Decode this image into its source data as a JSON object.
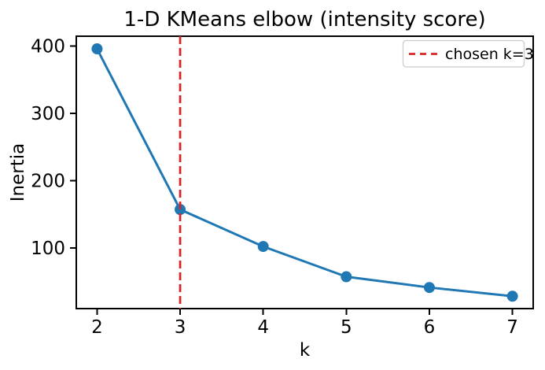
{
  "chart_data": {
    "type": "line",
    "title": "1-D KMeans elbow (intensity score)",
    "xlabel": "k",
    "ylabel": "Inertia",
    "x": [
      2,
      3,
      4,
      5,
      6,
      7
    ],
    "y": [
      396,
      157,
      102,
      57,
      41,
      28
    ],
    "series_name": "inertia",
    "xticks": [
      2,
      3,
      4,
      5,
      6,
      7
    ],
    "yticks": [
      100,
      200,
      300,
      400
    ],
    "xlim": [
      1.75,
      7.25
    ],
    "ylim": [
      9.6,
      414.8
    ],
    "grid": false,
    "line_color": "#1f77b4",
    "marker": "circle",
    "axis_color": "#000000",
    "background": "#ffffff",
    "vline": {
      "x": 3,
      "style": "dashed",
      "color": "#d62728",
      "label": "chosen k=3"
    },
    "legend": {
      "position": "upper right",
      "border_color": "#cccccc",
      "entries": [
        {
          "label": "chosen k=3",
          "color": "#d62728",
          "dash": true
        }
      ]
    }
  }
}
